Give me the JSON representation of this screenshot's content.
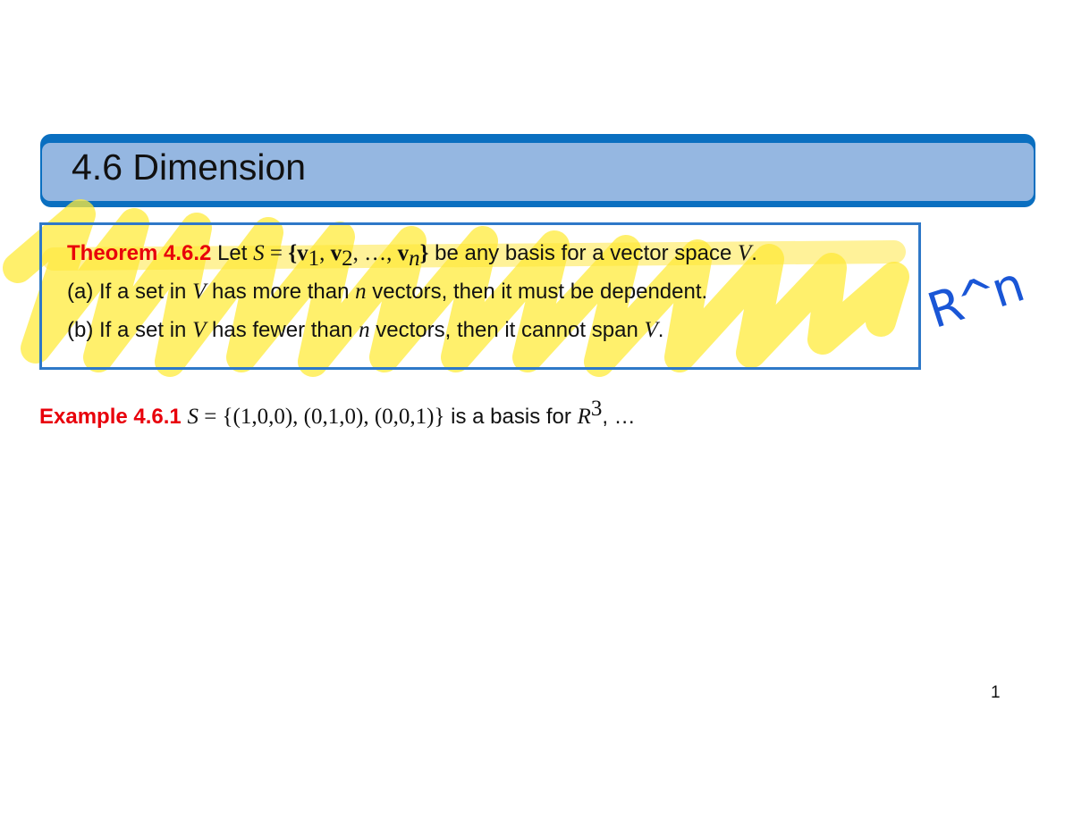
{
  "slide": {
    "title": "4.6 Dimension",
    "page_number": "1"
  },
  "theorem": {
    "label": "Theorem 4.6.2",
    "line1": {
      "let": "Let",
      "S": "S",
      "eq": " = ",
      "set_open": "{",
      "v": "v",
      "sub1": "1",
      "sub2": "2",
      "comma": ", ",
      "dots": "…",
      "subn": "n",
      "set_close": "}",
      "rest": " be any basis for a vector space ",
      "V": "V",
      "end": "."
    },
    "line2": {
      "a": "(a) If a set in ",
      "V": "V",
      "b": " has more than ",
      "n": "n",
      "c": " vectors, then it must be dependent."
    },
    "line3": {
      "a": "(b) If a set in ",
      "V": "V",
      "b": " has fewer than ",
      "n": "n",
      "c": " vectors, then it cannot span ",
      "end": "."
    }
  },
  "example": {
    "label": "Example 4.6.1",
    "S": "S",
    "set": " = {(1,0,0), (0,1,0), (0,0,1)}",
    "rest": " is a basis for ",
    "R": "R",
    "exp": "3",
    "tail": ", …"
  },
  "annotations": {
    "highlight_color": "#FFEB3B",
    "ink_color": "#1A56D6",
    "handwritten": "R^n"
  }
}
